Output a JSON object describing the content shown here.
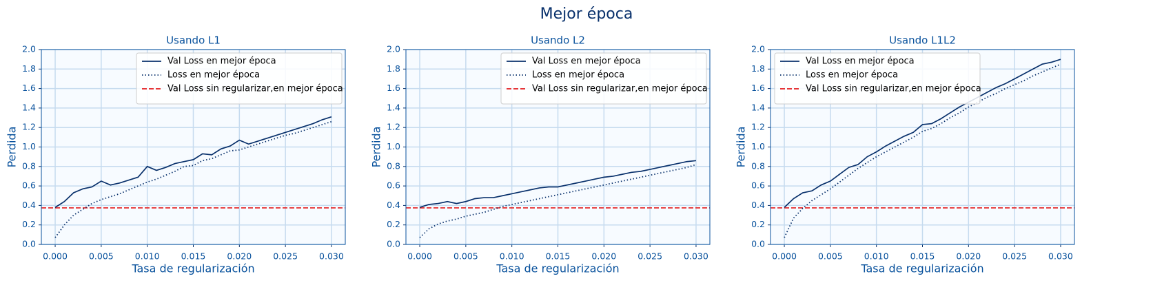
{
  "title": "Mejor época",
  "chart_data": [
    {
      "type": "line",
      "title": "Usando L1",
      "xlabel": "Tasa de regularización",
      "ylabel": "Perdida",
      "x": [
        0,
        0.001,
        0.002,
        0.003,
        0.004,
        0.005,
        0.006,
        0.007,
        0.008,
        0.009,
        0.01,
        0.011,
        0.012,
        0.013,
        0.014,
        0.015,
        0.016,
        0.017,
        0.018,
        0.019,
        0.02,
        0.021,
        0.022,
        0.023,
        0.024,
        0.025,
        0.026,
        0.027,
        0.028,
        0.029,
        0.03
      ],
      "series": [
        {
          "name": "Val Loss en mejor época",
          "color": "#08306b",
          "linestyle": "solid",
          "values": [
            0.38,
            0.44,
            0.53,
            0.57,
            0.59,
            0.65,
            0.61,
            0.63,
            0.66,
            0.69,
            0.8,
            0.76,
            0.79,
            0.83,
            0.85,
            0.87,
            0.93,
            0.92,
            0.98,
            1.01,
            1.07,
            1.03,
            1.06,
            1.09,
            1.12,
            1.15,
            1.18,
            1.21,
            1.24,
            1.28,
            1.31
          ]
        },
        {
          "name": "Loss en mejor época",
          "color": "#08306b",
          "linestyle": "dotted",
          "values": [
            0.07,
            0.2,
            0.3,
            0.36,
            0.42,
            0.46,
            0.49,
            0.52,
            0.56,
            0.6,
            0.64,
            0.67,
            0.71,
            0.75,
            0.8,
            0.81,
            0.86,
            0.88,
            0.92,
            0.96,
            0.97,
            1.0,
            1.03,
            1.06,
            1.09,
            1.12,
            1.14,
            1.17,
            1.2,
            1.23,
            1.26
          ]
        }
      ],
      "hlines": [
        {
          "name": "Val Loss sin regularizar,en mejor época",
          "color": "#e31a1c",
          "linestyle": "dashed",
          "value": 0.375
        }
      ],
      "xlim": [
        -0.0015,
        0.0315
      ],
      "xticks": [
        {
          "value": 0,
          "label": "0.000"
        },
        {
          "value": 0.005,
          "label": "0.005"
        },
        {
          "value": 0.01,
          "label": "0.010"
        },
        {
          "value": 0.015,
          "label": "0.015"
        },
        {
          "value": 0.02,
          "label": "0.020"
        },
        {
          "value": 0.025,
          "label": "0.025"
        },
        {
          "value": 0.03,
          "label": "0.030"
        }
      ],
      "ylim": [
        0,
        2
      ],
      "yticks": [
        {
          "value": 0,
          "label": "0.0"
        },
        0.2,
        0.4,
        0.6,
        0.8,
        {
          "value": 1,
          "label": "1.0"
        },
        1.2,
        1.4,
        1.6,
        1.8,
        {
          "value": 2,
          "label": "2.0"
        }
      ],
      "grid": true,
      "legend": "upper right"
    },
    {
      "type": "line",
      "title": "Usando L2",
      "xlabel": "Tasa de regularización",
      "ylabel": "Perdida",
      "x": [
        0,
        0.001,
        0.002,
        0.003,
        0.004,
        0.005,
        0.006,
        0.007,
        0.008,
        0.009,
        0.01,
        0.011,
        0.012,
        0.013,
        0.014,
        0.015,
        0.016,
        0.017,
        0.018,
        0.019,
        0.02,
        0.021,
        0.022,
        0.023,
        0.024,
        0.025,
        0.026,
        0.027,
        0.028,
        0.029,
        0.03
      ],
      "series": [
        {
          "name": "Val Loss en mejor época",
          "color": "#08306b",
          "linestyle": "solid",
          "values": [
            0.38,
            0.41,
            0.42,
            0.44,
            0.42,
            0.44,
            0.47,
            0.48,
            0.48,
            0.5,
            0.52,
            0.54,
            0.56,
            0.58,
            0.59,
            0.59,
            0.61,
            0.63,
            0.65,
            0.67,
            0.69,
            0.7,
            0.72,
            0.74,
            0.75,
            0.77,
            0.79,
            0.81,
            0.83,
            0.85,
            0.86
          ]
        },
        {
          "name": "Loss en mejor época",
          "color": "#08306b",
          "linestyle": "dotted",
          "values": [
            0.07,
            0.16,
            0.21,
            0.24,
            0.26,
            0.29,
            0.31,
            0.33,
            0.36,
            0.39,
            0.41,
            0.43,
            0.45,
            0.47,
            0.49,
            0.51,
            0.53,
            0.55,
            0.57,
            0.59,
            0.61,
            0.63,
            0.65,
            0.67,
            0.69,
            0.71,
            0.73,
            0.75,
            0.77,
            0.79,
            0.82
          ]
        }
      ],
      "hlines": [
        {
          "name": "Val Loss sin regularizar,en mejor época",
          "color": "#e31a1c",
          "linestyle": "dashed",
          "value": 0.375
        }
      ],
      "xlim": [
        -0.0015,
        0.0315
      ],
      "xticks": [
        {
          "value": 0,
          "label": "0.000"
        },
        {
          "value": 0.005,
          "label": "0.005"
        },
        {
          "value": 0.01,
          "label": "0.010"
        },
        {
          "value": 0.015,
          "label": "0.015"
        },
        {
          "value": 0.02,
          "label": "0.020"
        },
        {
          "value": 0.025,
          "label": "0.025"
        },
        {
          "value": 0.03,
          "label": "0.030"
        }
      ],
      "ylim": [
        0,
        2
      ],
      "yticks": [
        {
          "value": 0,
          "label": "0.0"
        },
        0.2,
        0.4,
        0.6,
        0.8,
        {
          "value": 1,
          "label": "1.0"
        },
        1.2,
        1.4,
        1.6,
        1.8,
        {
          "value": 2,
          "label": "2.0"
        }
      ],
      "grid": true,
      "legend": "upper right"
    },
    {
      "type": "line",
      "title": "Usando L1L2",
      "xlabel": "Tasa de regularización",
      "ylabel": "Perdida",
      "x": [
        0,
        0.001,
        0.002,
        0.003,
        0.004,
        0.005,
        0.006,
        0.007,
        0.008,
        0.009,
        0.01,
        0.011,
        0.012,
        0.013,
        0.014,
        0.015,
        0.016,
        0.017,
        0.018,
        0.019,
        0.02,
        0.021,
        0.022,
        0.023,
        0.024,
        0.025,
        0.026,
        0.027,
        0.028,
        0.029,
        0.03
      ],
      "series": [
        {
          "name": "Val Loss en mejor época",
          "color": "#08306b",
          "linestyle": "solid",
          "values": [
            0.38,
            0.47,
            0.53,
            0.55,
            0.61,
            0.65,
            0.72,
            0.79,
            0.82,
            0.9,
            0.95,
            1.01,
            1.06,
            1.11,
            1.15,
            1.23,
            1.24,
            1.29,
            1.35,
            1.41,
            1.46,
            1.51,
            1.56,
            1.61,
            1.65,
            1.7,
            1.75,
            1.8,
            1.85,
            1.87,
            1.9
          ]
        },
        {
          "name": "Loss en mejor época",
          "color": "#08306b",
          "linestyle": "dotted",
          "values": [
            0.07,
            0.27,
            0.37,
            0.45,
            0.51,
            0.57,
            0.64,
            0.71,
            0.78,
            0.84,
            0.9,
            0.95,
            1.0,
            1.05,
            1.1,
            1.16,
            1.19,
            1.24,
            1.3,
            1.35,
            1.41,
            1.46,
            1.51,
            1.55,
            1.6,
            1.64,
            1.68,
            1.73,
            1.77,
            1.81,
            1.85
          ]
        }
      ],
      "hlines": [
        {
          "name": "Val Loss sin regularizar,en mejor época",
          "color": "#e31a1c",
          "linestyle": "dashed",
          "value": 0.375
        }
      ],
      "xlim": [
        -0.0015,
        0.0315
      ],
      "xticks": [
        {
          "value": 0,
          "label": "0.000"
        },
        {
          "value": 0.005,
          "label": "0.005"
        },
        {
          "value": 0.01,
          "label": "0.010"
        },
        {
          "value": 0.015,
          "label": "0.015"
        },
        {
          "value": 0.02,
          "label": "0.020"
        },
        {
          "value": 0.025,
          "label": "0.025"
        },
        {
          "value": 0.03,
          "label": "0.030"
        }
      ],
      "ylim": [
        0,
        2
      ],
      "yticks": [
        {
          "value": 0,
          "label": "0.0"
        },
        0.2,
        0.4,
        0.6,
        0.8,
        {
          "value": 1,
          "label": "1.0"
        },
        1.2,
        1.4,
        1.6,
        1.8,
        {
          "value": 2,
          "label": "2.0"
        }
      ],
      "grid": true,
      "legend": "upper left"
    }
  ]
}
